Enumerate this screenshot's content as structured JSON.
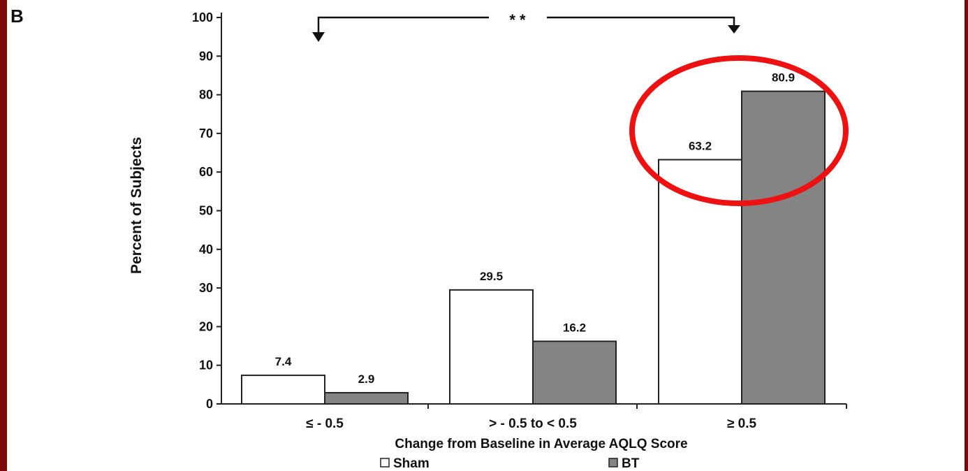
{
  "panel_label": "B",
  "chart_data": {
    "type": "bar",
    "categories": [
      "≤ - 0.5",
      "> - 0.5 to < 0.5",
      "≥ 0.5"
    ],
    "series": [
      {
        "name": "Sham",
        "values": [
          7.4,
          29.5,
          63.2
        ],
        "color": "#ffffff",
        "labels": [
          "7.4",
          "29.5",
          "63.2"
        ]
      },
      {
        "name": "BT",
        "values": [
          2.9,
          16.2,
          80.9
        ],
        "color": "#848484",
        "labels": [
          "2.9",
          "16.2",
          "80.9"
        ]
      }
    ],
    "xlabel": "Change from Baseline in Average AQLQ Score",
    "ylabel": "Percent of Subjects",
    "ylim": [
      0,
      100
    ],
    "yticks": [
      0,
      10,
      20,
      30,
      40,
      50,
      60,
      70,
      80,
      90,
      100
    ],
    "ytick_labels": [
      "0",
      "10",
      "20",
      "30",
      "40",
      "50",
      "60",
      "70",
      "80",
      "90",
      "100"
    ],
    "grid": false,
    "legend_position": "bottom",
    "annotations": [
      {
        "type": "significance-bracket",
        "text": "* *",
        "from_category": "≤ - 0.5",
        "to_category": "≥ 0.5"
      },
      {
        "type": "highlight-ellipse",
        "target_category": "≥ 0.5",
        "color": "#ee1111"
      }
    ]
  },
  "colors": {
    "frame": "#7a0a0a",
    "bt_bar": "#848484",
    "sham_bar": "#ffffff",
    "highlight": "#ee1111"
  }
}
